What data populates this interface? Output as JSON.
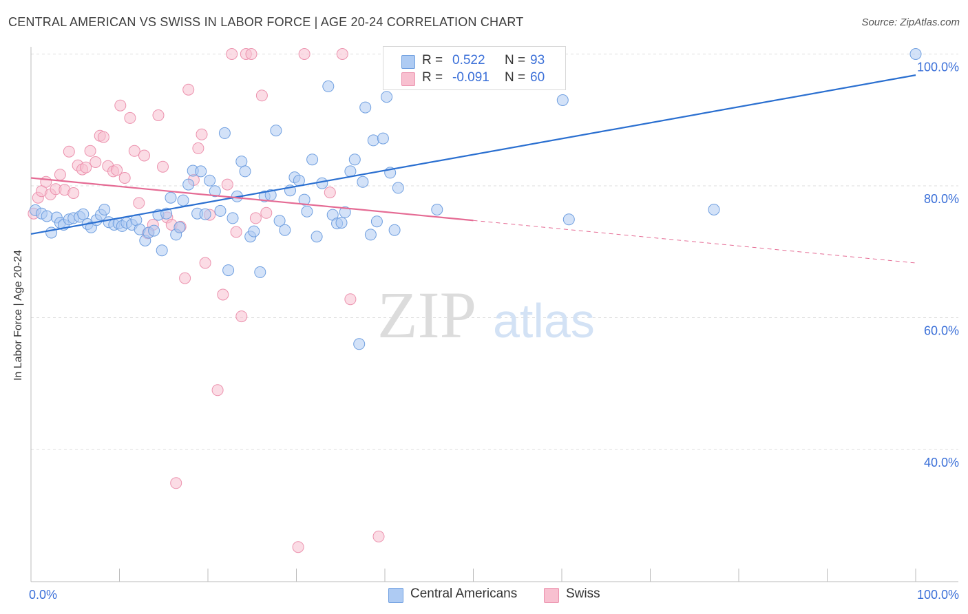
{
  "title": "CENTRAL AMERICAN VS SWISS IN LABOR FORCE | AGE 20-24 CORRELATION CHART",
  "source": "Source: ZipAtlas.com",
  "watermark": {
    "zip": "ZIP",
    "atlas": "atlas"
  },
  "legend": {
    "series1": {
      "r_label": "R =",
      "r_value": "0.522",
      "n_label": "N =",
      "n_value": "93"
    },
    "series2": {
      "r_label": "R =",
      "r_value": "-0.091",
      "n_label": "N =",
      "n_value": "60"
    }
  },
  "bottom_legend": {
    "series1": "Central Americans",
    "series2": "Swiss"
  },
  "colors": {
    "blue_fill": "#aecbf3",
    "blue_stroke": "#6f9fe0",
    "blue_line": "#2a6fd0",
    "pink_fill": "#f8c0d0",
    "pink_stroke": "#ec92ae",
    "pink_line": "#e56b94",
    "tick_label": "#3a6fd8",
    "grid": "#dddddd"
  },
  "chart_data": {
    "type": "scatter",
    "title": "CENTRAL AMERICAN VS SWISS IN LABOR FORCE | AGE 20-24 CORRELATION CHART",
    "xlabel": "",
    "ylabel": "In Labor Force | Age 20-24",
    "xlim": [
      0,
      100
    ],
    "ylim": [
      20,
      102
    ],
    "x_tick_labels": [
      "0.0%",
      "100.0%"
    ],
    "y_ticks": [
      40,
      60,
      80,
      100
    ],
    "y_tick_labels": [
      "40.0%",
      "60.0%",
      "80.0%",
      "100.0%"
    ],
    "grid": true,
    "legend_position": "top-center",
    "series": [
      {
        "name": "Central Americans",
        "color": "#6f9fe0",
        "r": 0.522,
        "n": 93,
        "trend": {
          "x": [
            0,
            100
          ],
          "y": [
            72.7,
            96.8
          ],
          "dashed_from": null
        },
        "points": [
          [
            0.5,
            76.3
          ],
          [
            1.2,
            75.8
          ],
          [
            1.8,
            75.4
          ],
          [
            2.3,
            72.9
          ],
          [
            2.9,
            75.2
          ],
          [
            3.3,
            74.4
          ],
          [
            3.7,
            74.1
          ],
          [
            4.3,
            74.9
          ],
          [
            4.8,
            75.1
          ],
          [
            5.5,
            75.3
          ],
          [
            5.9,
            75.7
          ],
          [
            6.4,
            74.2
          ],
          [
            6.8,
            73.7
          ],
          [
            7.4,
            74.8
          ],
          [
            7.9,
            75.6
          ],
          [
            8.3,
            76.4
          ],
          [
            8.8,
            74.5
          ],
          [
            9.4,
            74.1
          ],
          [
            9.9,
            74.3
          ],
          [
            10.3,
            73.9
          ],
          [
            10.8,
            74.4
          ],
          [
            11.4,
            74.1
          ],
          [
            11.9,
            74.8
          ],
          [
            12.3,
            73.4
          ],
          [
            12.9,
            71.7
          ],
          [
            13.3,
            72.9
          ],
          [
            13.9,
            73.2
          ],
          [
            14.4,
            75.6
          ],
          [
            14.8,
            70.2
          ],
          [
            15.3,
            75.8
          ],
          [
            15.8,
            78.2
          ],
          [
            16.4,
            72.6
          ],
          [
            16.8,
            73.7
          ],
          [
            17.2,
            77.8
          ],
          [
            17.8,
            80.2
          ],
          [
            18.3,
            82.3
          ],
          [
            18.8,
            75.8
          ],
          [
            19.2,
            82.2
          ],
          [
            19.7,
            75.7
          ],
          [
            20.2,
            80.8
          ],
          [
            20.8,
            79.2
          ],
          [
            21.4,
            76.2
          ],
          [
            21.9,
            88.0
          ],
          [
            22.3,
            67.2
          ],
          [
            22.8,
            75.1
          ],
          [
            23.3,
            78.4
          ],
          [
            23.8,
            83.7
          ],
          [
            24.2,
            82.2
          ],
          [
            24.8,
            72.3
          ],
          [
            25.2,
            73.1
          ],
          [
            25.9,
            66.9
          ],
          [
            26.4,
            78.4
          ],
          [
            27.1,
            78.6
          ],
          [
            27.7,
            88.4
          ],
          [
            28.1,
            74.7
          ],
          [
            28.7,
            73.3
          ],
          [
            29.3,
            79.3
          ],
          [
            29.8,
            81.3
          ],
          [
            30.3,
            80.8
          ],
          [
            30.9,
            77.9
          ],
          [
            31.2,
            76.1
          ],
          [
            31.8,
            84.0
          ],
          [
            32.3,
            72.3
          ],
          [
            32.9,
            80.4
          ],
          [
            33.6,
            95.1
          ],
          [
            34.1,
            75.6
          ],
          [
            34.6,
            74.3
          ],
          [
            35.1,
            74.4
          ],
          [
            35.5,
            76.0
          ],
          [
            36.1,
            82.2
          ],
          [
            36.6,
            84.0
          ],
          [
            37.1,
            56.0
          ],
          [
            37.5,
            80.6
          ],
          [
            37.8,
            91.9
          ],
          [
            38.4,
            72.6
          ],
          [
            38.7,
            86.9
          ],
          [
            39.1,
            74.6
          ],
          [
            39.8,
            87.2
          ],
          [
            40.2,
            93.5
          ],
          [
            40.6,
            82.0
          ],
          [
            41.1,
            73.3
          ],
          [
            41.5,
            79.7
          ],
          [
            42.1,
            100.0
          ],
          [
            42.5,
            97.8
          ],
          [
            43.4,
            97.8
          ],
          [
            45.0,
            100.0
          ],
          [
            45.9,
            76.4
          ],
          [
            47.3,
            99.5
          ],
          [
            56.2,
            100.0
          ],
          [
            60.1,
            93.0
          ],
          [
            60.8,
            74.9
          ],
          [
            77.2,
            76.4
          ],
          [
            100.0,
            100.0
          ]
        ]
      },
      {
        "name": "Swiss",
        "color": "#ec92ae",
        "r": -0.091,
        "n": 60,
        "trend": {
          "x": [
            0,
            100
          ],
          "y": [
            81.2,
            68.3
          ],
          "dashed_from": 50
        },
        "points": [
          [
            0.3,
            75.8
          ],
          [
            0.8,
            78.2
          ],
          [
            1.2,
            79.2
          ],
          [
            1.7,
            80.6
          ],
          [
            2.2,
            78.7
          ],
          [
            2.8,
            79.5
          ],
          [
            3.3,
            81.7
          ],
          [
            3.8,
            79.4
          ],
          [
            4.3,
            85.2
          ],
          [
            4.8,
            78.9
          ],
          [
            5.3,
            83.1
          ],
          [
            5.8,
            82.5
          ],
          [
            6.2,
            82.8
          ],
          [
            6.7,
            85.3
          ],
          [
            7.3,
            83.6
          ],
          [
            7.8,
            87.6
          ],
          [
            8.2,
            87.4
          ],
          [
            8.7,
            83.0
          ],
          [
            9.3,
            82.2
          ],
          [
            9.7,
            82.4
          ],
          [
            10.1,
            92.2
          ],
          [
            10.6,
            81.2
          ],
          [
            11.2,
            90.3
          ],
          [
            11.7,
            85.3
          ],
          [
            12.2,
            77.4
          ],
          [
            12.8,
            84.6
          ],
          [
            13.2,
            72.8
          ],
          [
            13.8,
            74.1
          ],
          [
            14.4,
            90.7
          ],
          [
            14.9,
            82.9
          ],
          [
            15.4,
            75.2
          ],
          [
            15.9,
            74.1
          ],
          [
            16.4,
            34.9
          ],
          [
            16.9,
            73.8
          ],
          [
            17.4,
            66.0
          ],
          [
            17.8,
            94.6
          ],
          [
            18.4,
            80.9
          ],
          [
            18.9,
            85.7
          ],
          [
            19.3,
            87.8
          ],
          [
            19.7,
            68.3
          ],
          [
            20.2,
            75.6
          ],
          [
            21.1,
            49.0
          ],
          [
            21.7,
            63.5
          ],
          [
            22.2,
            80.2
          ],
          [
            22.7,
            100.0
          ],
          [
            23.2,
            73.0
          ],
          [
            23.8,
            60.2
          ],
          [
            24.3,
            100.0
          ],
          [
            24.9,
            100.0
          ],
          [
            25.4,
            75.1
          ],
          [
            26.1,
            93.7
          ],
          [
            26.6,
            75.9
          ],
          [
            30.2,
            25.2
          ],
          [
            30.9,
            100.0
          ],
          [
            33.8,
            79.0
          ],
          [
            35.2,
            100.0
          ],
          [
            36.1,
            62.8
          ],
          [
            39.3,
            26.8
          ],
          [
            40.8,
            100.0
          ],
          [
            43.4,
            98.3
          ]
        ]
      }
    ]
  }
}
